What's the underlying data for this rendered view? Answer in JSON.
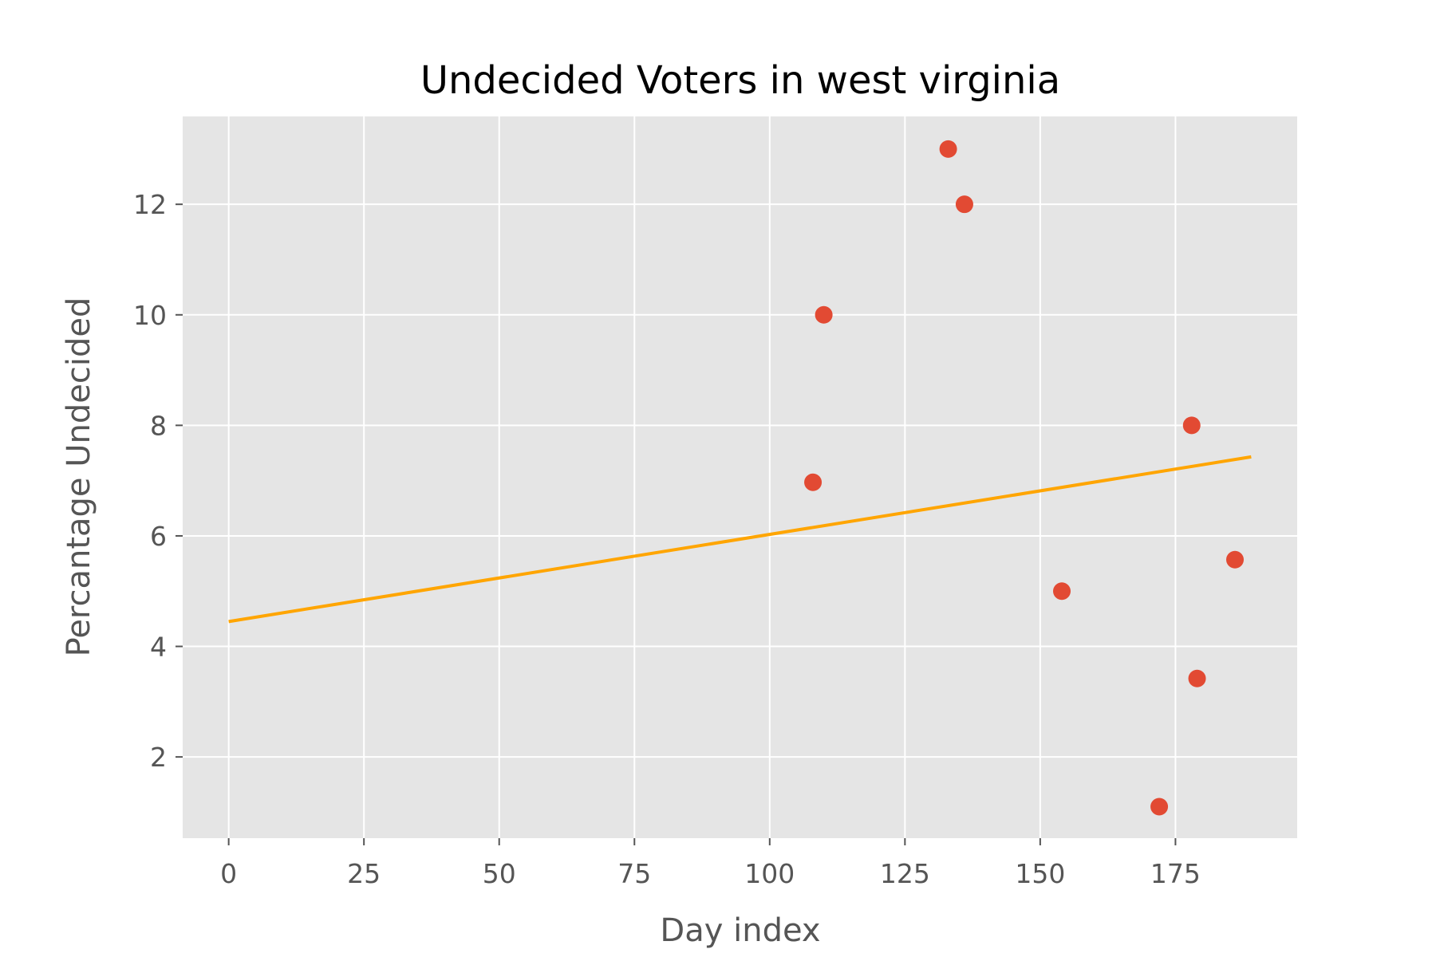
{
  "chart_data": {
    "type": "scatter",
    "title": "Undecided Voters in west virginia",
    "xlabel": "Day index",
    "ylabel": "Percantage Undecided",
    "xlim": [
      -8.5,
      197.5
    ],
    "ylim": [
      0.53,
      13.59
    ],
    "x_ticks": [
      0,
      25,
      50,
      75,
      100,
      125,
      150,
      175
    ],
    "y_ticks": [
      2,
      4,
      6,
      8,
      10,
      12
    ],
    "grid": true,
    "legend": "none",
    "colors": {
      "background": "#e5e5e5",
      "grid": "#ffffff",
      "points": "#e24a33",
      "trend_line": "#ffa500"
    },
    "series": [
      {
        "kind": "scatter",
        "x": [
          108,
          110,
          133,
          136,
          154,
          172,
          178,
          179,
          186
        ],
        "y": [
          6.97,
          10.0,
          13.0,
          12.0,
          5.0,
          1.1,
          8.0,
          3.42,
          5.57
        ]
      },
      {
        "kind": "line",
        "x": [
          0,
          189
        ],
        "y": [
          4.45,
          7.43
        ]
      }
    ]
  }
}
